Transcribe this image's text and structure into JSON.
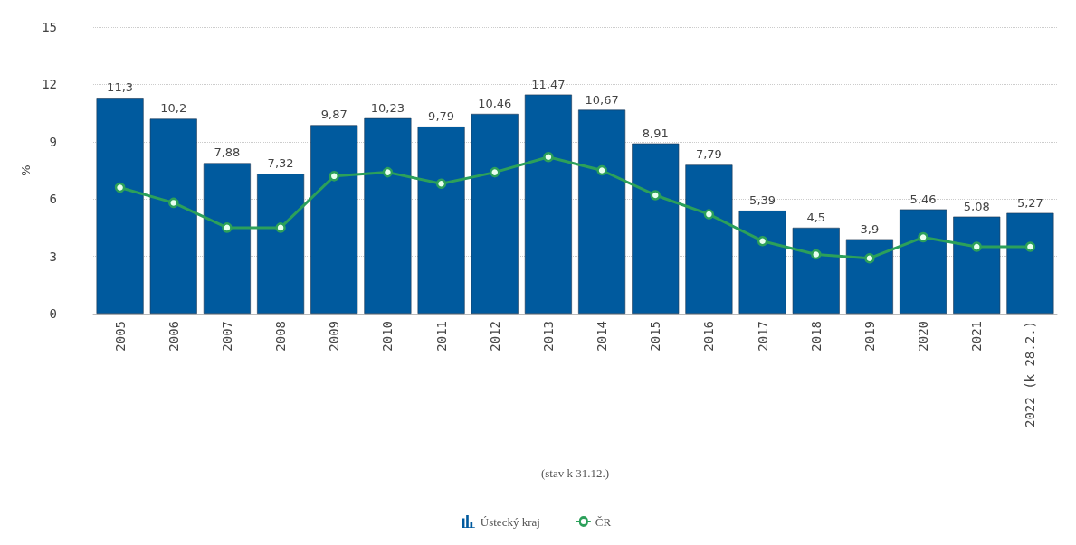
{
  "chart_data": {
    "type": "bar",
    "ylabel": "%",
    "xlabel": "(stav k 31.12.)",
    "categories": [
      "2005",
      "2006",
      "2007",
      "2008",
      "2009",
      "2010",
      "2011",
      "2012",
      "2013",
      "2014",
      "2015",
      "2016",
      "2017",
      "2018",
      "2019",
      "2020",
      "2021",
      "2022 (k 28.2.)"
    ],
    "series": [
      {
        "name": "Ústecký kraj",
        "color": "#005a9e",
        "values": [
          11.3,
          10.2,
          7.88,
          7.32,
          9.87,
          10.23,
          9.79,
          10.46,
          11.47,
          10.67,
          8.91,
          7.79,
          5.39,
          4.5,
          3.9,
          5.46,
          5.08,
          5.27
        ],
        "value_labels": [
          "11,3",
          "10,2",
          "7,88",
          "7,32",
          "9,87",
          "10,23",
          "9,79",
          "10,46",
          "11,47",
          "10,67",
          "8,91",
          "7,79",
          "5,39",
          "4,5",
          "3,9",
          "5,46",
          "5,08",
          "5,27"
        ]
      },
      {
        "name": "ČR",
        "type": "line",
        "color": "#2ca05a",
        "marker": "circle",
        "values": [
          6.6,
          5.8,
          4.5,
          4.5,
          7.2,
          7.4,
          6.8,
          7.4,
          8.2,
          7.5,
          6.2,
          5.2,
          3.8,
          3.1,
          2.9,
          4.0,
          3.5,
          3.5
        ]
      }
    ],
    "ylim": [
      0,
      15
    ],
    "yticks": [
      0,
      3,
      6,
      9,
      12,
      15
    ],
    "grid": "y",
    "legend": "bottom"
  }
}
